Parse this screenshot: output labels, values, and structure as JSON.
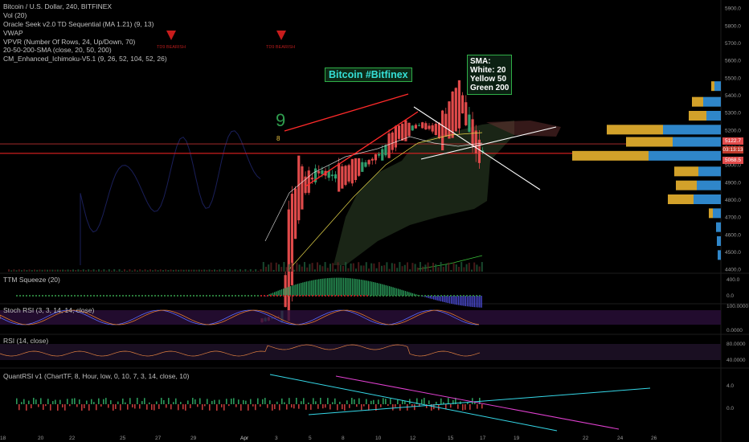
{
  "legend": [
    "Bitcoin / U.S. Dollar, 240, BITFINEX",
    "Vol (20)",
    "Oracle Seek v2.0 TD Sequential (MA 1.21) (9, 13)",
    "VWAP",
    "VPVR (Number Of Rows, 24, Up/Down, 70)",
    "20-50-200-SMA (close, 20, 50, 200)",
    "CM_Enhanced_Ichimoku-V5.1 (9, 26, 52, 104, 52, 26)"
  ],
  "td_labels": [
    "TD9 BEARISH",
    "TD9 BEARISH"
  ],
  "td_counts": [
    "9",
    "8"
  ],
  "annotation": "Bitcoin #Bitfinex",
  "sma_box": [
    "SMA:",
    "White: 20",
    "Yellow 50",
    "Green 200"
  ],
  "price_tags": [
    "5122.7",
    "03:13:13",
    "5068.5"
  ],
  "panes": {
    "squeeze": {
      "label": "TTM Squeeze (20)",
      "ticks": [
        "400.0",
        "0.0"
      ]
    },
    "stoch": {
      "label": "Stoch RSI (3, 3, 14, 14, close)",
      "ticks": [
        "100.0000",
        "0.0000"
      ]
    },
    "rsi": {
      "label": "RSI (14, close)",
      "ticks": [
        "80.0000",
        "40.0000"
      ]
    },
    "quant": {
      "label": "QuantRSI v1 (ChartTF, 8, Hour, low, 0, 10, 7, 3, 14, close, 10)",
      "ticks": [
        "4.0",
        "0.0"
      ]
    }
  },
  "chart_data": {
    "type": "candlestick",
    "symbol": "Bitcoin / U.S. Dollar",
    "exchange": "BITFINEX",
    "interval": "240",
    "x_ticks": [
      "18",
      "20",
      "22",
      "25",
      "27",
      "29",
      "Apr",
      "3",
      "5",
      "8",
      "10",
      "12",
      "15",
      "17",
      "19",
      "22",
      "24",
      "26"
    ],
    "y_ticks": [
      4400,
      4500,
      4600,
      4700,
      4800,
      4900,
      5000,
      5100,
      5200,
      5300,
      5400,
      5500,
      5600,
      5700,
      5800,
      5900
    ],
    "ylim": [
      4380,
      5940
    ],
    "price_levels": {
      "last": 5122.7,
      "support": 5068.5
    },
    "series": [
      {
        "x": "Apr 1",
        "open": 4110,
        "high": 4150,
        "low": 4090,
        "close": 4130
      },
      {
        "x": "Apr 2",
        "open": 4130,
        "high": 4880,
        "low": 4120,
        "close": 4870
      },
      {
        "x": "Apr 3",
        "open": 4870,
        "high": 5090,
        "low": 4830,
        "close": 4960
      },
      {
        "x": "Apr 4",
        "open": 4960,
        "high": 5080,
        "low": 4870,
        "close": 4930
      },
      {
        "x": "Apr 5",
        "open": 4930,
        "high": 5010,
        "low": 4880,
        "close": 4990
      },
      {
        "x": "Apr 6",
        "open": 4990,
        "high": 5140,
        "low": 4980,
        "close": 5060
      },
      {
        "x": "Apr 7",
        "open": 5060,
        "high": 5230,
        "low": 5040,
        "close": 5190
      },
      {
        "x": "Apr 8",
        "open": 5190,
        "high": 5290,
        "low": 5160,
        "close": 5230
      },
      {
        "x": "Apr 9",
        "open": 5230,
        "high": 5280,
        "low": 5150,
        "close": 5200
      },
      {
        "x": "Apr 10",
        "open": 5200,
        "high": 5470,
        "low": 5180,
        "close": 5350
      },
      {
        "x": "Apr 11",
        "open": 5350,
        "high": 5420,
        "low": 4980,
        "close": 5080
      },
      {
        "x": "Apr 12",
        "open": 5080,
        "high": 5110,
        "low": 4980,
        "close": 5060
      },
      {
        "x": "Apr 13",
        "open": 5060,
        "high": 5130,
        "low": 5040,
        "close": 5080
      },
      {
        "x": "Apr 14",
        "open": 5080,
        "high": 5140,
        "low": 5050,
        "close": 5122.7
      }
    ],
    "volume_profile_rows": [
      {
        "price": 5450,
        "up": 4,
        "down": 8
      },
      {
        "price": 5360,
        "up": 14,
        "down": 22
      },
      {
        "price": 5280,
        "up": 22,
        "down": 18
      },
      {
        "price": 5200,
        "up": 70,
        "down": 72
      },
      {
        "price": 5130,
        "up": 58,
        "down": 60
      },
      {
        "price": 5050,
        "up": 95,
        "down": 90
      },
      {
        "price": 4960,
        "up": 30,
        "down": 28
      },
      {
        "price": 4880,
        "up": 26,
        "down": 30
      },
      {
        "price": 4800,
        "up": 32,
        "down": 34
      },
      {
        "price": 4720,
        "up": 5,
        "down": 10
      },
      {
        "price": 4640,
        "up": 0,
        "down": 6
      },
      {
        "price": 4560,
        "up": 0,
        "down": 5
      },
      {
        "price": 4480,
        "up": 0,
        "down": 4
      }
    ]
  },
  "colors": {
    "background": "#000000",
    "bull": "#2f9e6e",
    "bear": "#e04a4a",
    "trendline_red": "#ff2a2a",
    "trendline_white": "#ffffff",
    "cloud": "#4a6b3e",
    "vp_up": "#2f86c9",
    "vp_down": "#d2a12a",
    "stoch_band": "#2a0f3a",
    "quant_cyan": "#35d8e8",
    "quant_magenta": "#e040d0",
    "sma20": "#ffffff",
    "sma50": "#e8d84a",
    "sma200": "#38c038"
  }
}
